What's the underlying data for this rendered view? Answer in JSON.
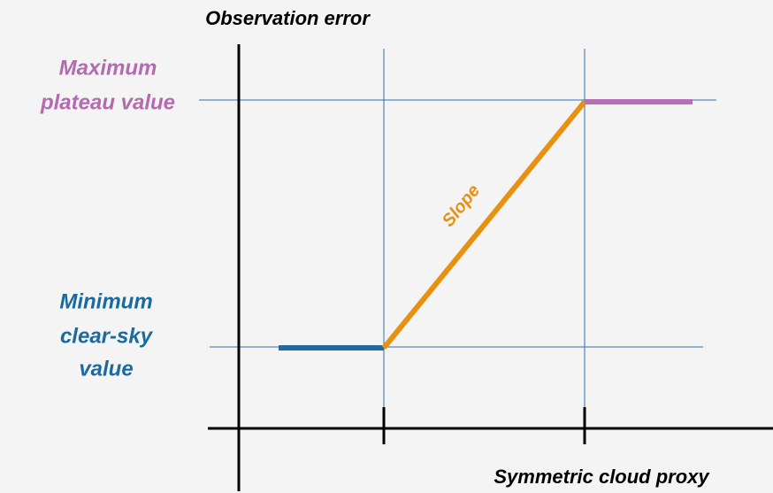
{
  "title": "Observation error",
  "x_axis_label": "Symmetric cloud proxy",
  "plateau_label": [
    "Maximum",
    "plateau value"
  ],
  "clear_sky_label": [
    "Minimum",
    "clear-sky",
    "value"
  ],
  "slope_label": "Slope"
}
